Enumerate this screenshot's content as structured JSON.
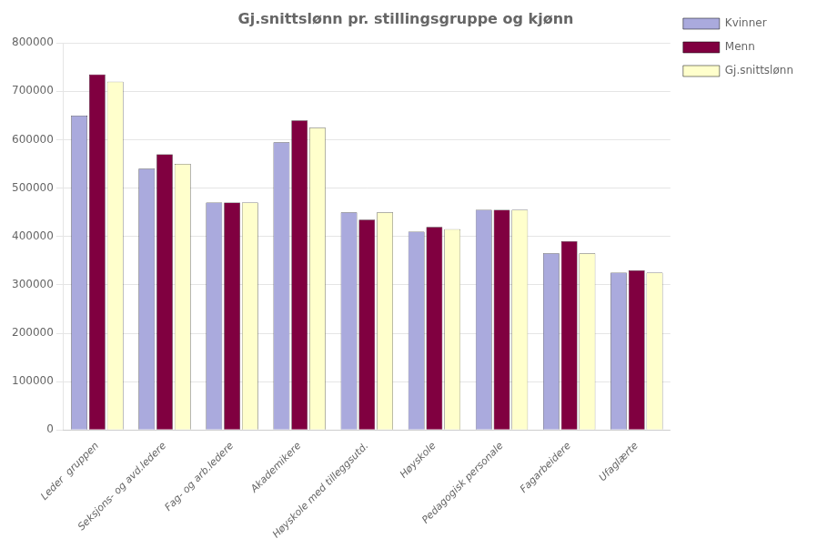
{
  "chart_data": {
    "type": "bar",
    "title": "Gj.snittslønn pr. stillingsgruppe og kjønn",
    "categories": [
      "Leder  gruppen",
      "Seksjons- og avd.ledere",
      "Fag- og arb.ledere",
      "Akademikere",
      "Høyskole med tilleggsutd.",
      "Høyskole",
      "Pedagogisk personale",
      "Fagarbeidere",
      "Ufaglærte"
    ],
    "series": [
      {
        "name": "Kvinner",
        "color": "#aaaadd",
        "values": [
          650000,
          540000,
          470000,
          595000,
          450000,
          410000,
          455000,
          365000,
          325000
        ]
      },
      {
        "name": "Menn",
        "color": "#800040",
        "values": [
          735000,
          570000,
          470000,
          640000,
          435000,
          420000,
          455000,
          390000,
          330000
        ]
      },
      {
        "name": "Gj.snittslønn",
        "color": "#ffffcc",
        "values": [
          720000,
          550000,
          470000,
          625000,
          450000,
          415000,
          455000,
          365000,
          325000
        ]
      }
    ],
    "ylim": [
      0,
      800000
    ],
    "yticks": [
      0,
      100000,
      200000,
      300000,
      400000,
      500000,
      600000,
      700000,
      800000
    ],
    "grid": true,
    "legend": "right"
  }
}
